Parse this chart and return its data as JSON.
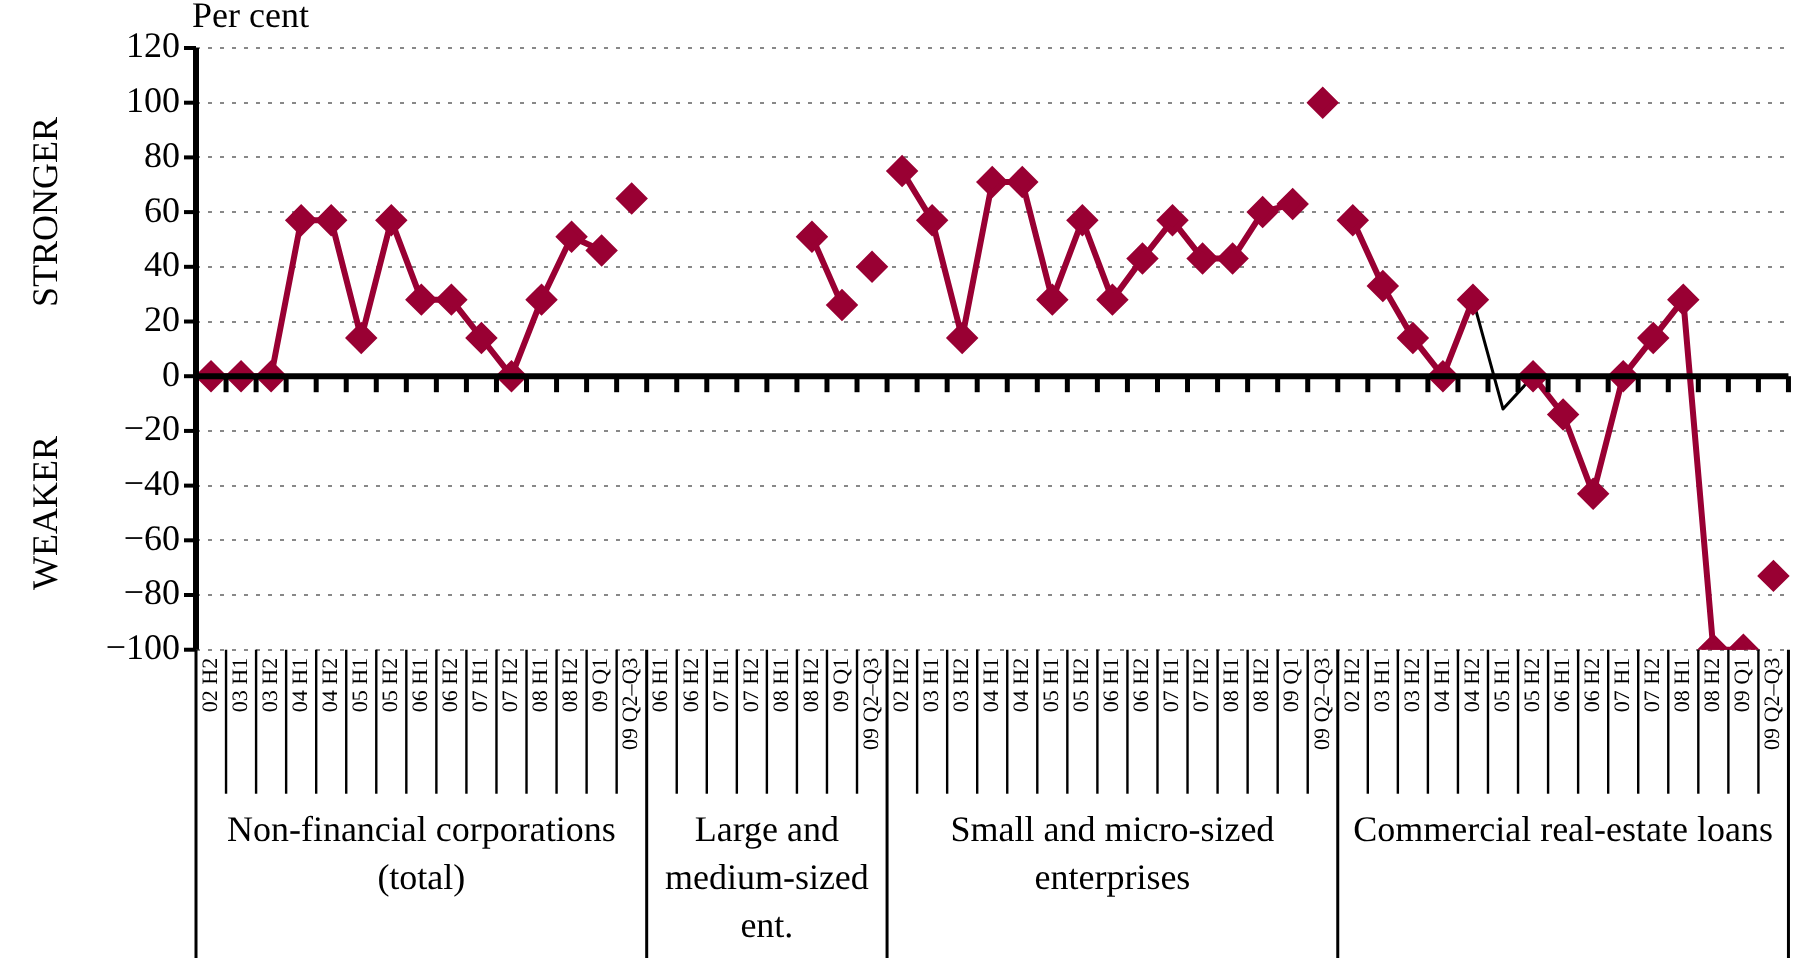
{
  "chart_data": {
    "type": "line",
    "ylabel": "Per cent",
    "categories": [
      "02 H2",
      "03 H1",
      "03 H2",
      "04 H1",
      "04 H2",
      "05 H1",
      "05 H2",
      "06 H1",
      "06 H2",
      "07 H1",
      "07 H2",
      "08 H1",
      "08 H2",
      "09 Q1",
      "09 Q2–Q3",
      "06 H1",
      "06 H2",
      "07 H1",
      "07 H2",
      "08 H1",
      "08 H2",
      "09 Q1",
      "09 Q2–Q3",
      "02 H2",
      "03 H1",
      "03 H2",
      "04 H1",
      "04 H2",
      "05 H1",
      "05 H2",
      "06 H1",
      "06 H2",
      "07 H1",
      "07 H2",
      "08 H1",
      "08 H2",
      "09 Q1",
      "09 Q2–Q3",
      "02 H2",
      "03 H1",
      "03 H2",
      "04 H1",
      "04 H2",
      "05 H1",
      "05 H2",
      "06 H1",
      "06 H2",
      "07 H1",
      "07 H2",
      "08 H1",
      "08 H2",
      "09 Q1",
      "09 Q2–Q3"
    ],
    "series": [
      {
        "color": "#990033",
        "values": [
          0,
          0,
          0,
          57,
          57,
          14,
          57,
          28,
          28,
          14,
          0,
          28,
          51,
          46,
          null,
          null,
          null,
          null,
          null,
          null,
          51,
          26,
          null,
          75,
          57,
          14,
          71,
          71,
          28,
          57,
          28,
          43,
          57,
          43,
          43,
          60,
          63,
          null,
          57,
          33,
          14,
          0,
          28,
          null,
          0,
          -14,
          -43,
          0,
          14,
          28,
          -100,
          -100,
          null
        ]
      },
      {
        "type": "scatter",
        "color": "#990033",
        "values": [
          null,
          null,
          null,
          null,
          null,
          null,
          null,
          null,
          null,
          null,
          null,
          null,
          null,
          null,
          65,
          null,
          null,
          null,
          null,
          null,
          null,
          null,
          40,
          null,
          null,
          null,
          null,
          null,
          null,
          null,
          null,
          null,
          null,
          null,
          null,
          null,
          null,
          100,
          null,
          null,
          null,
          null,
          null,
          null,
          null,
          null,
          null,
          null,
          null,
          null,
          null,
          null,
          -73
        ]
      },
      {
        "color": "#000000",
        "marker": "none",
        "values": [
          null,
          null,
          null,
          null,
          null,
          null,
          null,
          null,
          null,
          null,
          null,
          null,
          null,
          null,
          null,
          null,
          null,
          null,
          null,
          null,
          null,
          null,
          null,
          null,
          null,
          null,
          null,
          null,
          null,
          null,
          null,
          null,
          null,
          null,
          null,
          null,
          null,
          null,
          null,
          null,
          null,
          null,
          28,
          -12,
          0,
          null,
          null,
          null,
          null,
          null,
          null,
          null,
          null
        ]
      }
    ],
    "ylim": [
      -100,
      120
    ],
    "yticks": [
      -100,
      -80,
      -60,
      -40,
      -20,
      0,
      20,
      40,
      60,
      80,
      100,
      120
    ],
    "grid": "y",
    "legend": false,
    "marker": "diamond",
    "line_style": "solid",
    "annotations": [
      "STRONGER",
      "WEAKER",
      "Non-financial corporations (total)",
      "Large and medium-sized ent.",
      "Small and micro-sized enterprises",
      "Commercial real-estate loans"
    ]
  }
}
